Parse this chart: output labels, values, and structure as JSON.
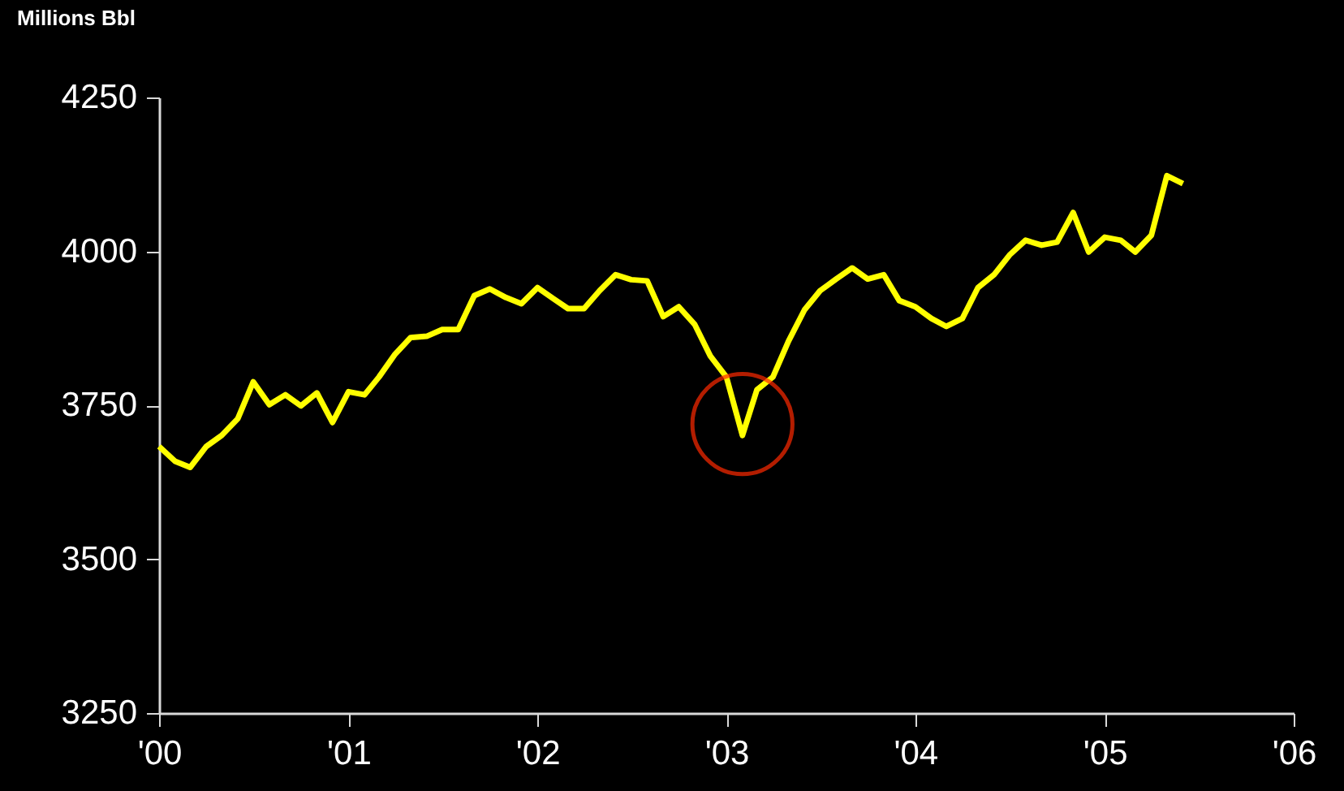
{
  "chart_data": {
    "type": "line",
    "ylabel": "Millions Bbl",
    "x": [
      "2000-01",
      "2000-02",
      "2000-03",
      "2000-04",
      "2000-05",
      "2000-06",
      "2000-07",
      "2000-08",
      "2000-09",
      "2000-10",
      "2000-11",
      "2000-12",
      "2001-01",
      "2001-02",
      "2001-03",
      "2001-04",
      "2001-05",
      "2001-06",
      "2001-07",
      "2001-08",
      "2001-09",
      "2001-10",
      "2001-11",
      "2001-12",
      "2002-01",
      "2002-02",
      "2002-03",
      "2002-04",
      "2002-05",
      "2002-06",
      "2002-07",
      "2002-08",
      "2002-09",
      "2002-10",
      "2002-11",
      "2002-12",
      "2003-01",
      "2003-02",
      "2003-03",
      "2003-04",
      "2003-05",
      "2003-06",
      "2003-07",
      "2003-08",
      "2003-09",
      "2003-10",
      "2003-11",
      "2003-12",
      "2004-01",
      "2004-02",
      "2004-03",
      "2004-04",
      "2004-05",
      "2004-06",
      "2004-07",
      "2004-08",
      "2004-09",
      "2004-10",
      "2004-11",
      "2004-12",
      "2005-01",
      "2005-02",
      "2005-03",
      "2005-04",
      "2005-05",
      "2005-06"
    ],
    "series": [
      {
        "color": "#ffff00",
        "values": [
          3683,
          3659,
          3649,
          3683,
          3701,
          3728,
          3788,
          3751,
          3767,
          3749,
          3770,
          3722,
          3772,
          3767,
          3796,
          3833,
          3860,
          3862,
          3873,
          3873,
          3928,
          3939,
          3925,
          3915,
          3941,
          3923,
          3907,
          3907,
          3936,
          3962,
          3954,
          3952,
          3894,
          3910,
          3881,
          3830,
          3796,
          3701,
          3775,
          3796,
          3854,
          3905,
          3936,
          3955,
          3973,
          3955,
          3962,
          3920,
          3910,
          3891,
          3878,
          3891,
          3941,
          3962,
          3994,
          4018,
          4010,
          4015,
          4063,
          3999,
          4023,
          4018,
          3999,
          4026,
          4123,
          4110
        ]
      }
    ],
    "xlim": [
      "2000-01",
      "2006-01"
    ],
    "xticks": [
      {
        "value": "2000-01",
        "label": "'00"
      },
      {
        "value": "2001-01",
        "label": "'01"
      },
      {
        "value": "2002-01",
        "label": "'02"
      },
      {
        "value": "2003-01",
        "label": "'03"
      },
      {
        "value": "2004-01",
        "label": "'04"
      },
      {
        "value": "2005-01",
        "label": "'05"
      },
      {
        "value": "2006-01",
        "label": "'06"
      }
    ],
    "ylim": [
      3250,
      4250
    ],
    "yticks": [
      3250,
      3500,
      3750,
      4000,
      4250
    ],
    "grid": false,
    "marker": "none",
    "line_style": "solid"
  }
}
